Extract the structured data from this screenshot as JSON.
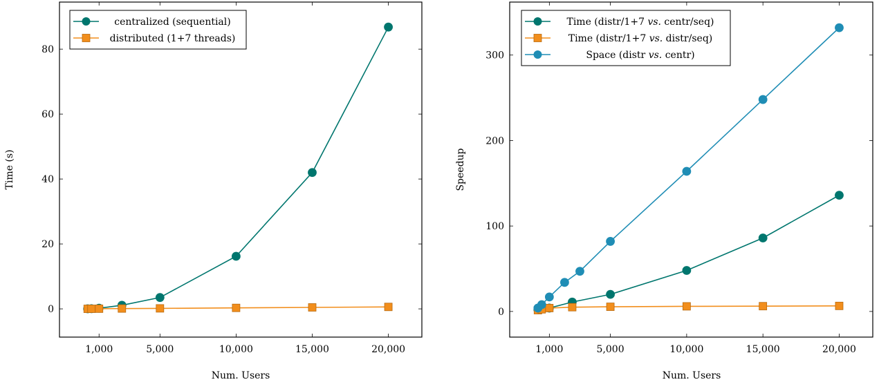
{
  "chart_data": [
    {
      "type": "line",
      "xlabel": "Num. Users",
      "ylabel": "Time (s)",
      "xlim": [
        -1600,
        22200
      ],
      "ylim": [
        -8.7,
        94.5
      ],
      "xticks": [
        1000,
        5000,
        10000,
        15000,
        20000
      ],
      "xtick_labels": [
        "1,000",
        "5,000",
        "10,000",
        "15,000",
        "20,000"
      ],
      "yticks": [
        0,
        20,
        40,
        60,
        80
      ],
      "ytick_labels": [
        "0",
        "20",
        "40",
        "60",
        "80"
      ],
      "legend_position": "top-left",
      "series": [
        {
          "name": "centralized (sequential)",
          "color": "#00766e",
          "marker": "circle",
          "points": [
            [
              250,
              0.02
            ],
            [
              500,
              0.05
            ],
            [
              1000,
              0.2
            ],
            [
              2500,
              1.1
            ],
            [
              5000,
              3.5
            ],
            [
              10000,
              16.2
            ],
            [
              15000,
              42.0
            ],
            [
              20000,
              86.8
            ]
          ]
        },
        {
          "name": "distributed (1+7 threads)",
          "color": "#f28e1c",
          "marker": "square",
          "points": [
            [
              250,
              0.01
            ],
            [
              500,
              0.02
            ],
            [
              1000,
              0.05
            ],
            [
              2500,
              0.1
            ],
            [
              5000,
              0.15
            ],
            [
              10000,
              0.3
            ],
            [
              15000,
              0.45
            ],
            [
              20000,
              0.6
            ]
          ]
        }
      ]
    },
    {
      "type": "line",
      "xlabel": "Num. Users",
      "ylabel": "Speedup",
      "xlim": [
        -1600,
        22200
      ],
      "ylim": [
        -30,
        362
      ],
      "xticks": [
        1000,
        5000,
        10000,
        15000,
        20000
      ],
      "xtick_labels": [
        "1,000",
        "5,000",
        "10,000",
        "15,000",
        "20,000"
      ],
      "yticks": [
        0,
        100,
        200,
        300
      ],
      "ytick_labels": [
        "0",
        "100",
        "200",
        "300"
      ],
      "legend_position": "top-left",
      "series": [
        {
          "name": "Time (distr/1+7 vs. centr/seq)",
          "name_parts": [
            "Time (distr/1+7 ",
            "vs.",
            " centr/seq)"
          ],
          "color": "#00766e",
          "marker": "circle",
          "points": [
            [
              250,
              2
            ],
            [
              500,
              3
            ],
            [
              1000,
              4
            ],
            [
              2500,
              11
            ],
            [
              5000,
              20
            ],
            [
              10000,
              48
            ],
            [
              15000,
              86
            ],
            [
              20000,
              136
            ]
          ]
        },
        {
          "name": "Time (distr/1+7 vs. distr/seq)",
          "name_parts": [
            "Time (distr/1+7 ",
            "vs.",
            " distr/seq)"
          ],
          "color": "#f28e1c",
          "marker": "square",
          "points": [
            [
              250,
              1.5
            ],
            [
              500,
              2.5
            ],
            [
              1000,
              4
            ],
            [
              2500,
              5
            ],
            [
              5000,
              5.5
            ],
            [
              10000,
              6
            ],
            [
              15000,
              6.2
            ],
            [
              20000,
              6.5
            ]
          ]
        },
        {
          "name": "Space (distr vs. centr)",
          "name_parts": [
            "Space (distr ",
            "vs.",
            " centr)"
          ],
          "color": "#1f8db5",
          "marker": "circle",
          "points": [
            [
              250,
              4
            ],
            [
              500,
              8
            ],
            [
              1000,
              17
            ],
            [
              2000,
              34
            ],
            [
              3000,
              47
            ],
            [
              5000,
              82
            ],
            [
              10000,
              164
            ],
            [
              15000,
              248
            ],
            [
              20000,
              332
            ]
          ]
        }
      ]
    }
  ]
}
